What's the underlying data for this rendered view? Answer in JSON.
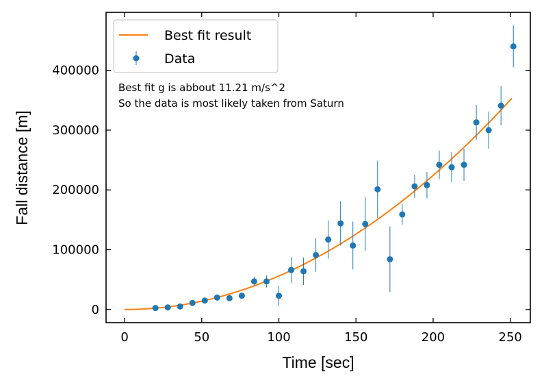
{
  "chart_data": {
    "type": "scatter",
    "xlabel": "Time [sec]",
    "ylabel": "Fall distance [m]",
    "xlim": [
      -12,
      263
    ],
    "ylim": [
      -22000,
      497000
    ],
    "xticks": [
      0,
      50,
      100,
      150,
      200,
      250
    ],
    "yticks": [
      0,
      100000,
      200000,
      300000,
      400000
    ],
    "x_tick_labels": [
      "0",
      "50",
      "100",
      "150",
      "200",
      "250"
    ],
    "y_tick_labels": [
      "0",
      "100000",
      "200000",
      "300000",
      "400000"
    ],
    "grid": false,
    "tick_direction": "in",
    "ticks_all_sides": true,
    "legend": {
      "position": "top-left",
      "entries": [
        "Best fit result",
        "Data"
      ]
    },
    "annotations": [
      "Best fit g is abbout 11.21 m/s^2",
      "So the data is most likely taken from Saturn"
    ],
    "colors": {
      "fit": "#ff7f0e",
      "data": "#1f77b4"
    },
    "fit": {
      "name": "Best fit result",
      "formula": "0.5 * g * t^2",
      "g": 11.21,
      "x_range": [
        0,
        251
      ]
    },
    "series": [
      {
        "name": "Data",
        "x": [
          20,
          28,
          36,
          44,
          52,
          60,
          68,
          76,
          84,
          92,
          100,
          108,
          116,
          124,
          132,
          140,
          148,
          156,
          164,
          172,
          180,
          188,
          196,
          204,
          212,
          220,
          228,
          236,
          244,
          252
        ],
        "y": [
          2500,
          3500,
          5000,
          11000,
          15000,
          20000,
          19000,
          23000,
          47000,
          47000,
          23000,
          66000,
          64000,
          91000,
          117000,
          144000,
          107000,
          143000,
          201000,
          84000,
          159000,
          206000,
          208000,
          242000,
          238000,
          242000,
          313000,
          300000,
          341000,
          440000
        ],
        "err": [
          1000,
          1500,
          2000,
          3000,
          3500,
          4000,
          4000,
          5000,
          8000,
          10000,
          17000,
          22000,
          23000,
          28000,
          32000,
          37000,
          40000,
          45000,
          48000,
          55000,
          17000,
          19000,
          22000,
          24000,
          25000,
          27000,
          29000,
          31000,
          33000,
          35000
        ]
      }
    ]
  }
}
